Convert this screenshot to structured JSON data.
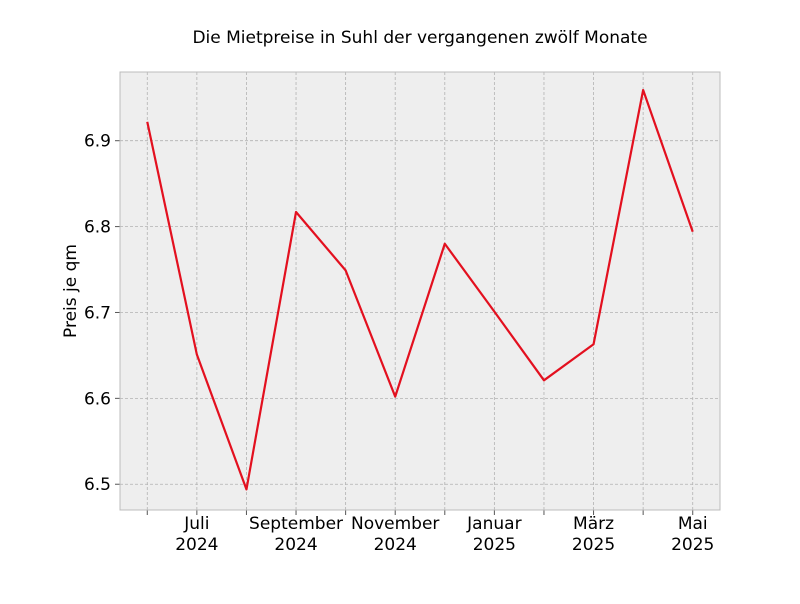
{
  "chart_data": {
    "type": "line",
    "title": "Die Mietpreise in Suhl der vergangenen zwölf Monate",
    "xlabel": "",
    "ylabel": "Preis je qm",
    "x": [
      "2024-06",
      "2024-07",
      "2024-08",
      "2024-09",
      "2024-10",
      "2024-11",
      "2024-12",
      "2025-01",
      "2025-02",
      "2025-03",
      "2025-04",
      "2025-05"
    ],
    "series": [
      {
        "name": "",
        "color": "#e3101f",
        "values": [
          6.922,
          6.651,
          6.494,
          6.817,
          6.749,
          6.602,
          6.78,
          6.701,
          6.621,
          6.663,
          6.959,
          6.794
        ]
      }
    ],
    "ylim": [
      6.47,
      6.98
    ],
    "yticks": [
      "6.5",
      "6.6",
      "6.7",
      "6.8",
      "6.9"
    ],
    "xticks": [
      {
        "month": "2024-07",
        "label1": "Juli",
        "label2": "2024"
      },
      {
        "month": "2024-09",
        "label1": "September",
        "label2": "2024"
      },
      {
        "month": "2024-11",
        "label1": "November",
        "label2": "2024"
      },
      {
        "month": "2025-01",
        "label1": "Januar",
        "label2": "2025"
      },
      {
        "month": "2025-03",
        "label1": "März",
        "label2": "2025"
      },
      {
        "month": "2025-05",
        "label1": "Mai",
        "label2": "2025"
      }
    ],
    "grid": true,
    "background": "#eeeeee"
  }
}
